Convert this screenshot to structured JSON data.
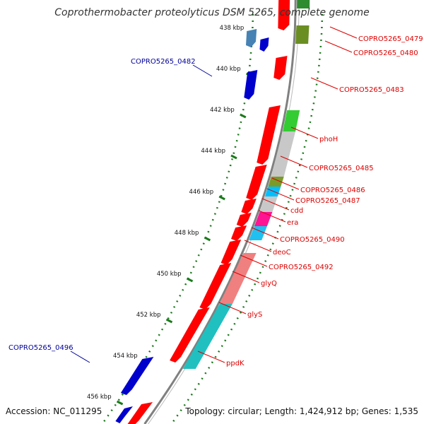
{
  "title": "Coprothermobacter proteolyticus DSM 5265, complete genome",
  "footer": {
    "accession": "Accession: NC_011295",
    "topology": "Topology: circular; Length: 1,424,912 bp; Genes: 1,535"
  },
  "colors": {
    "backbone": "#808080",
    "tick": "#1a7a1a",
    "forward_label": "#000099",
    "reverse_label": "#dd0000",
    "gene_red": "#ff0000",
    "gene_blue": "#0000cc"
  },
  "kbp_ticks": [
    "438 kbp",
    "440 kbp",
    "442 kbp",
    "444 kbp",
    "446 kbp",
    "448 kbp",
    "450 kbp",
    "452 kbp",
    "454 kbp",
    "456 kbp"
  ],
  "left_labels": [
    "COPRO5265_0482",
    "COPRO5265_0496"
  ],
  "right_labels": [
    "COPRO5265_0479",
    "COPRO5265_0480",
    "COPRO5265_0483",
    "phoH",
    "COPRO5265_0485",
    "COPRO5265_0486",
    "COPRO5265_0487",
    "cdd",
    "era",
    "COPRO5265_0490",
    "deoC",
    "COPRO5265_0492",
    "glyQ",
    "glyS",
    "ppdK"
  ],
  "cog_colors": [
    "#2e8b2e",
    "#6b8e23",
    "#33cc33",
    "#c8c8c8",
    "#7a9a2a",
    "#00bfff",
    "#c8c8c8",
    "#ff1493",
    "#20c0f0",
    "#f08080",
    "#20c0c0"
  ]
}
